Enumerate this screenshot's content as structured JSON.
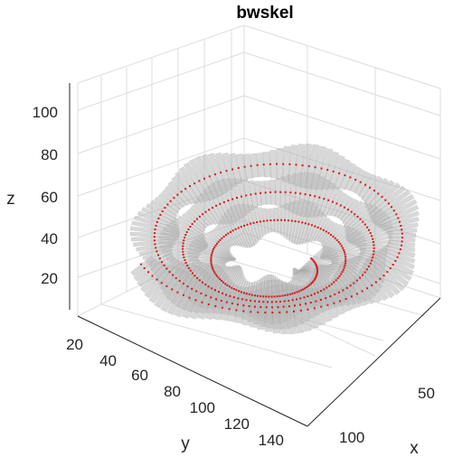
{
  "chart_data": {
    "type": "surface3d",
    "title": "bwskel",
    "xlabel": "x",
    "ylabel": "y",
    "zlabel": "z",
    "x_ticks": [
      "50",
      "100"
    ],
    "y_ticks": [
      "20",
      "40",
      "60",
      "80",
      "100",
      "120",
      "140"
    ],
    "z_ticks": [
      "20",
      "40",
      "60",
      "80",
      "100"
    ],
    "xlim": [
      0,
      120
    ],
    "ylim": [
      10,
      150
    ],
    "zlim": [
      0,
      115
    ],
    "grid": true,
    "surface_color": "#b8b8b8",
    "skeleton_color": "#d11a1a",
    "description_series": [
      {
        "name": "",
        "kind": "spiral-tube"
      },
      {
        "name": "",
        "kind": "skeleton-centerline"
      }
    ]
  }
}
